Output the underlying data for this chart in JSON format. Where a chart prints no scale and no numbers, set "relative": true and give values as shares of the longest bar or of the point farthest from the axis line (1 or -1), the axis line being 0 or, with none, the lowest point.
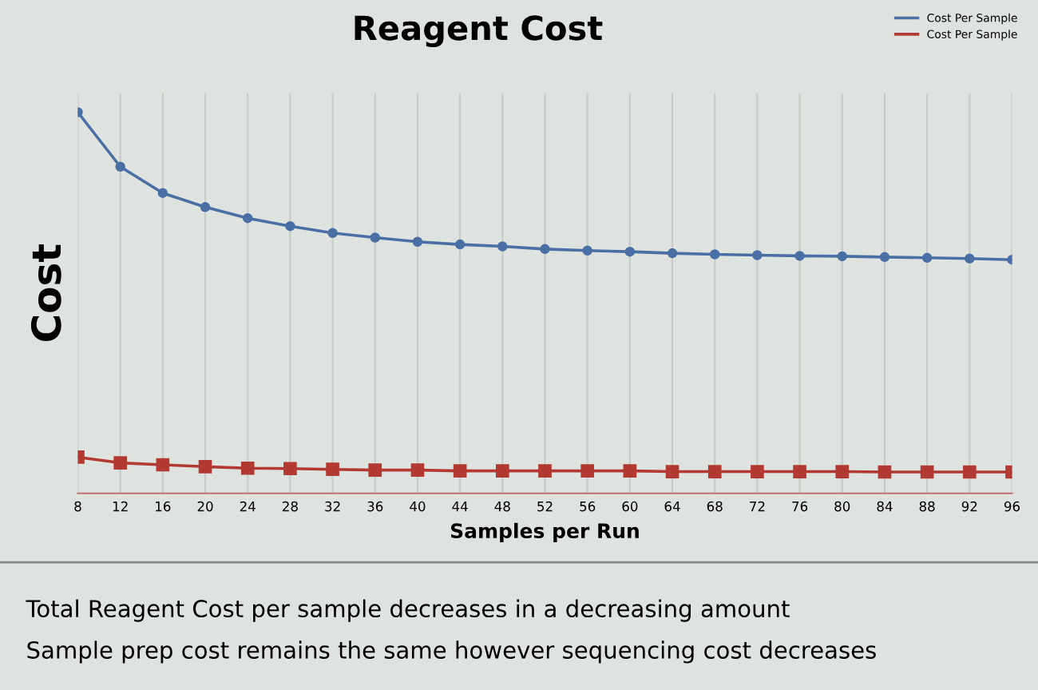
{
  "chart_data": {
    "type": "line",
    "title": "Reagent Cost",
    "ylabel": "Cost",
    "xlabel": "Samples per Run",
    "x": [
      8,
      12,
      16,
      20,
      24,
      28,
      32,
      36,
      40,
      44,
      48,
      52,
      56,
      60,
      64,
      68,
      72,
      76,
      80,
      84,
      88,
      92,
      96
    ],
    "xlim": [
      8,
      96
    ],
    "xticks": [
      8,
      12,
      16,
      20,
      24,
      28,
      32,
      36,
      40,
      44,
      48,
      52,
      56,
      60,
      64,
      68,
      72,
      76,
      80,
      84,
      88,
      92,
      96
    ],
    "relative": true,
    "grid": "x",
    "legend": "top right",
    "series": [
      {
        "name": "Cost Per Sample",
        "color": "#4a6fa5",
        "marker": "circle",
        "values": [
          1,
          0.857,
          0.788,
          0.751,
          0.722,
          0.701,
          0.683,
          0.671,
          0.66,
          0.653,
          0.648,
          0.641,
          0.637,
          0.634,
          0.63,
          0.627,
          0.625,
          0.623,
          0.622,
          0.62,
          0.618,
          0.616,
          0.613
        ]
      },
      {
        "name": "Cost Per Sample",
        "color": "#b23a32",
        "marker": "square",
        "values": [
          0.095,
          0.08,
          0.075,
          0.07,
          0.066,
          0.065,
          0.063,
          0.061,
          0.061,
          0.059,
          0.059,
          0.059,
          0.059,
          0.059,
          0.057,
          0.057,
          0.057,
          0.057,
          0.057,
          0.056,
          0.056,
          0.056,
          0.056
        ]
      }
    ],
    "annotations": [
      "Total Reagent Cost per sample decreases in a decreasing amount",
      "Sample prep cost remains the same however sequencing cost decreases"
    ]
  }
}
